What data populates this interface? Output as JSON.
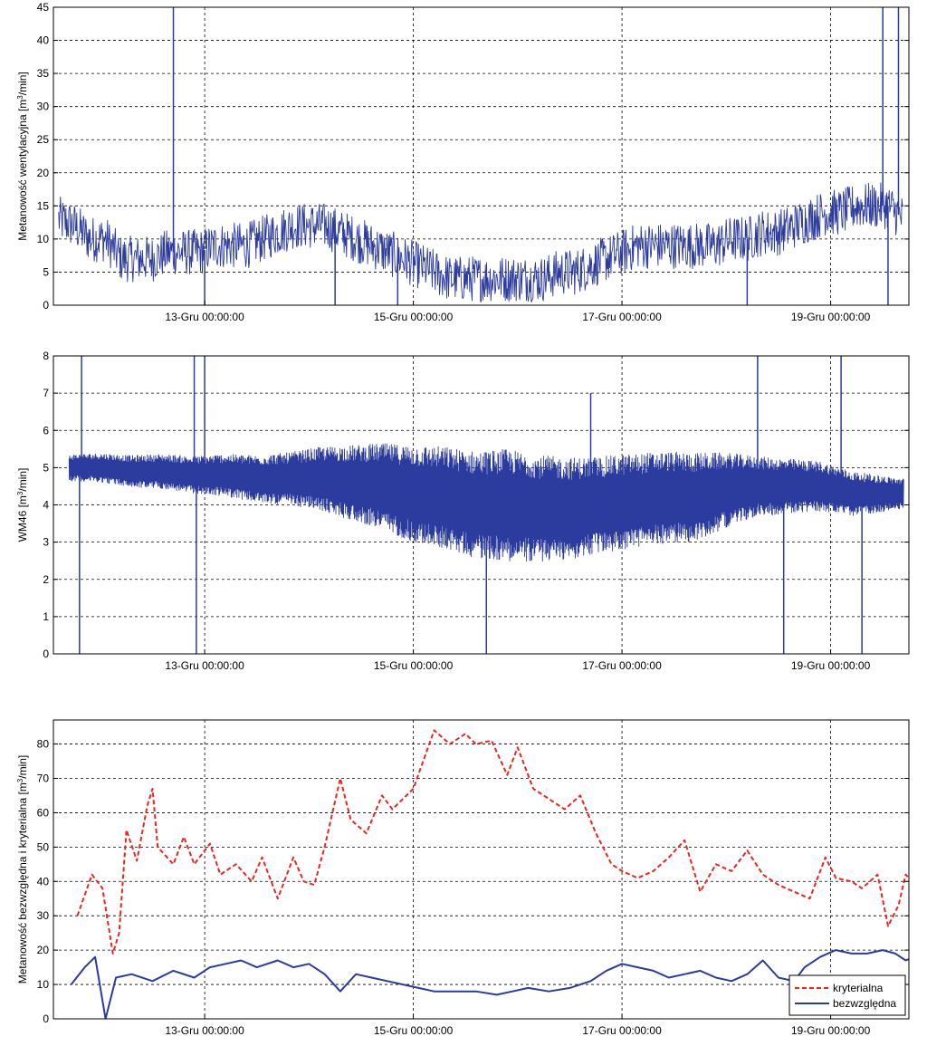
{
  "chart_data": [
    {
      "type": "line",
      "ylabel": "Metanowość wentylacyjna [m3/min]",
      "ylim": [
        0,
        45
      ],
      "yticks": [
        0,
        5,
        10,
        15,
        20,
        25,
        30,
        35,
        40,
        45
      ],
      "xlim": [
        11.55,
        19.75
      ],
      "xticks": [
        {
          "value": 13,
          "label": "13-Gru 00:00:00"
        },
        {
          "value": 15,
          "label": "15-Gru 00:00:00"
        },
        {
          "value": 17,
          "label": "17-Gru 00:00:00"
        },
        {
          "value": 19,
          "label": "19-Gru 00:00:00"
        }
      ],
      "grid": true,
      "series": [
        {
          "color": "#2b3b9e",
          "style": "solid",
          "points": [
            [
              11.6,
              13
            ],
            [
              11.75,
              12
            ],
            [
              11.9,
              10
            ],
            [
              12.05,
              10
            ],
            [
              12.2,
              7
            ],
            [
              12.35,
              7
            ],
            [
              12.5,
              7
            ],
            [
              12.65,
              8
            ],
            [
              12.8,
              8
            ],
            [
              12.95,
              8
            ],
            [
              13.1,
              9
            ],
            [
              13.25,
              9
            ],
            [
              13.4,
              9
            ],
            [
              13.55,
              10
            ],
            [
              13.7,
              11
            ],
            [
              13.85,
              12
            ],
            [
              14.0,
              12
            ],
            [
              14.15,
              12
            ],
            [
              14.3,
              11
            ],
            [
              14.45,
              10
            ],
            [
              14.6,
              9
            ],
            [
              14.75,
              8
            ],
            [
              14.9,
              7
            ],
            [
              15.05,
              6
            ],
            [
              15.2,
              5
            ],
            [
              15.35,
              4
            ],
            [
              15.5,
              4
            ],
            [
              15.65,
              4
            ],
            [
              15.8,
              4
            ],
            [
              15.95,
              4
            ],
            [
              16.1,
              4
            ],
            [
              16.25,
              4
            ],
            [
              16.4,
              5
            ],
            [
              16.55,
              5
            ],
            [
              16.7,
              6
            ],
            [
              16.85,
              7
            ],
            [
              17.0,
              8
            ],
            [
              17.15,
              9
            ],
            [
              17.3,
              9
            ],
            [
              17.45,
              9
            ],
            [
              17.6,
              9
            ],
            [
              17.75,
              9
            ],
            [
              17.9,
              9
            ],
            [
              18.05,
              10
            ],
            [
              18.2,
              10
            ],
            [
              18.35,
              11
            ],
            [
              18.5,
              11
            ],
            [
              18.65,
              12
            ],
            [
              18.8,
              13
            ],
            [
              18.95,
              14
            ],
            [
              19.1,
              14
            ],
            [
              19.25,
              15
            ],
            [
              19.4,
              15
            ],
            [
              19.55,
              15
            ],
            [
              19.7,
              13
            ]
          ],
          "noise": 3.5,
          "spikes": [
            {
              "x": 12.7,
              "y": 45
            },
            {
              "x": 13.0,
              "y": 0
            },
            {
              "x": 14.25,
              "y": 0
            },
            {
              "x": 14.85,
              "y": 0
            },
            {
              "x": 18.2,
              "y": 0
            },
            {
              "x": 19.5,
              "y": 45
            },
            {
              "x": 19.55,
              "y": 0
            },
            {
              "x": 19.65,
              "y": 45
            }
          ]
        }
      ]
    },
    {
      "type": "line",
      "ylabel": "WM46 [m3/min]",
      "ylim": [
        0,
        8
      ],
      "yticks": [
        0,
        1,
        2,
        3,
        4,
        5,
        6,
        7,
        8
      ],
      "xlim": [
        11.55,
        19.75
      ],
      "xticks": [
        {
          "value": 13,
          "label": "13-Gru 00:00:00"
        },
        {
          "value": 15,
          "label": "15-Gru 00:00:00"
        },
        {
          "value": 17,
          "label": "17-Gru 00:00:00"
        },
        {
          "value": 19,
          "label": "19-Gru 00:00:00"
        }
      ],
      "grid": true,
      "series": [
        {
          "color": "#2b3b9e",
          "style": "solid",
          "points": [
            [
              11.7,
              5.0
            ],
            [
              12.0,
              5.0
            ],
            [
              12.3,
              4.9
            ],
            [
              12.6,
              4.9
            ],
            [
              12.9,
              4.8
            ],
            [
              13.2,
              4.8
            ],
            [
              13.5,
              4.7
            ],
            [
              13.8,
              4.7
            ],
            [
              14.1,
              4.7
            ],
            [
              14.4,
              4.6
            ],
            [
              14.7,
              4.5
            ],
            [
              15.0,
              4.3
            ],
            [
              15.3,
              4.2
            ],
            [
              15.6,
              4.0
            ],
            [
              15.9,
              4.0
            ],
            [
              16.2,
              3.9
            ],
            [
              16.5,
              3.9
            ],
            [
              16.8,
              4.0
            ],
            [
              17.1,
              4.1
            ],
            [
              17.4,
              4.2
            ],
            [
              17.7,
              4.2
            ],
            [
              18.0,
              4.4
            ],
            [
              18.3,
              4.5
            ],
            [
              18.6,
              4.5
            ],
            [
              18.9,
              4.5
            ],
            [
              19.2,
              4.3
            ],
            [
              19.4,
              4.3
            ],
            [
              19.7,
              4.3
            ]
          ],
          "band_half_width": [
            [
              11.7,
              0.35
            ],
            [
              12.9,
              0.5
            ],
            [
              13.8,
              0.7
            ],
            [
              14.4,
              1.0
            ],
            [
              15.0,
              1.3
            ],
            [
              15.9,
              1.5
            ],
            [
              16.8,
              1.3
            ],
            [
              17.7,
              1.2
            ],
            [
              18.3,
              0.8
            ],
            [
              19.2,
              0.6
            ],
            [
              19.7,
              0.4
            ]
          ],
          "spikes": [
            {
              "x": 11.82,
              "y": 8
            },
            {
              "x": 11.8,
              "y": 0
            },
            {
              "x": 12.9,
              "y": 8
            },
            {
              "x": 12.92,
              "y": 0
            },
            {
              "x": 13.0,
              "y": 8
            },
            {
              "x": 15.7,
              "y": 0
            },
            {
              "x": 16.7,
              "y": 7
            },
            {
              "x": 18.3,
              "y": 8
            },
            {
              "x": 18.55,
              "y": 0
            },
            {
              "x": 19.1,
              "y": 8
            },
            {
              "x": 19.3,
              "y": 0
            }
          ]
        }
      ]
    },
    {
      "type": "line",
      "ylabel": "Metanowość bezwzględna i kryterialna [m3/min]",
      "ylim": [
        0,
        87
      ],
      "yticks": [
        0,
        10,
        20,
        30,
        40,
        50,
        60,
        70,
        80
      ],
      "xlim": [
        11.55,
        19.75
      ],
      "xticks": [
        {
          "value": 13,
          "label": "13-Gru 00:00:00"
        },
        {
          "value": 15,
          "label": "15-Gru 00:00:00"
        },
        {
          "value": 17,
          "label": "17-Gru 00:00:00"
        },
        {
          "value": 19,
          "label": "19-Gru 00:00:00"
        }
      ],
      "grid": true,
      "legend": "bottom-right",
      "series": [
        {
          "name": "kryterialna",
          "color": "#e8271f",
          "style": "dashed",
          "points": [
            [
              11.78,
              30
            ],
            [
              11.92,
              42
            ],
            [
              12.02,
              38
            ],
            [
              12.12,
              19
            ],
            [
              12.18,
              25
            ],
            [
              12.25,
              55
            ],
            [
              12.35,
              46
            ],
            [
              12.45,
              62
            ],
            [
              12.5,
              67
            ],
            [
              12.55,
              50
            ],
            [
              12.7,
              45
            ],
            [
              12.8,
              53
            ],
            [
              12.9,
              45
            ],
            [
              13.05,
              51
            ],
            [
              13.15,
              42
            ],
            [
              13.3,
              45
            ],
            [
              13.45,
              40
            ],
            [
              13.55,
              47
            ],
            [
              13.7,
              35
            ],
            [
              13.85,
              47
            ],
            [
              13.95,
              40
            ],
            [
              14.05,
              39
            ],
            [
              14.15,
              50
            ],
            [
              14.3,
              70
            ],
            [
              14.4,
              58
            ],
            [
              14.55,
              54
            ],
            [
              14.7,
              65
            ],
            [
              14.8,
              61
            ],
            [
              15.0,
              67
            ],
            [
              15.2,
              84
            ],
            [
              15.35,
              80
            ],
            [
              15.5,
              83
            ],
            [
              15.6,
              80
            ],
            [
              15.75,
              81
            ],
            [
              15.9,
              71
            ],
            [
              16.0,
              79
            ],
            [
              16.15,
              67
            ],
            [
              16.3,
              64
            ],
            [
              16.45,
              61
            ],
            [
              16.6,
              65
            ],
            [
              16.75,
              54
            ],
            [
              16.9,
              45
            ],
            [
              17.0,
              43
            ],
            [
              17.15,
              41
            ],
            [
              17.3,
              43
            ],
            [
              17.45,
              47
            ],
            [
              17.6,
              52
            ],
            [
              17.75,
              37
            ],
            [
              17.9,
              45
            ],
            [
              18.05,
              43
            ],
            [
              18.2,
              49
            ],
            [
              18.35,
              42
            ],
            [
              18.5,
              39
            ],
            [
              18.65,
              37
            ],
            [
              18.8,
              35
            ],
            [
              18.95,
              47
            ],
            [
              19.05,
              41
            ],
            [
              19.2,
              40
            ],
            [
              19.3,
              38
            ],
            [
              19.45,
              42
            ],
            [
              19.55,
              27
            ],
            [
              19.65,
              33
            ],
            [
              19.72,
              42
            ],
            [
              19.78,
              40
            ]
          ]
        },
        {
          "name": "bezwzględna",
          "color": "#2b3b9e",
          "style": "solid",
          "points": [
            [
              11.72,
              10
            ],
            [
              11.85,
              15
            ],
            [
              11.95,
              18
            ],
            [
              12.05,
              0
            ],
            [
              12.15,
              12
            ],
            [
              12.3,
              13
            ],
            [
              12.5,
              11
            ],
            [
              12.7,
              14
            ],
            [
              12.9,
              12
            ],
            [
              13.05,
              15
            ],
            [
              13.2,
              16
            ],
            [
              13.35,
              17
            ],
            [
              13.5,
              15
            ],
            [
              13.7,
              17
            ],
            [
              13.85,
              15
            ],
            [
              14.0,
              16
            ],
            [
              14.15,
              13
            ],
            [
              14.3,
              8
            ],
            [
              14.45,
              13
            ],
            [
              14.6,
              12
            ],
            [
              14.75,
              11
            ],
            [
              14.9,
              10
            ],
            [
              15.05,
              9
            ],
            [
              15.2,
              8
            ],
            [
              15.4,
              8
            ],
            [
              15.6,
              8
            ],
            [
              15.8,
              7
            ],
            [
              15.95,
              8
            ],
            [
              16.1,
              9
            ],
            [
              16.3,
              8
            ],
            [
              16.5,
              9
            ],
            [
              16.7,
              11
            ],
            [
              16.85,
              14
            ],
            [
              17.0,
              16
            ],
            [
              17.15,
              15
            ],
            [
              17.3,
              14
            ],
            [
              17.45,
              12
            ],
            [
              17.6,
              13
            ],
            [
              17.75,
              14
            ],
            [
              17.9,
              12
            ],
            [
              18.05,
              11
            ],
            [
              18.2,
              13
            ],
            [
              18.35,
              17
            ],
            [
              18.5,
              12
            ],
            [
              18.65,
              11
            ],
            [
              18.75,
              15
            ],
            [
              18.9,
              18
            ],
            [
              19.05,
              20
            ],
            [
              19.2,
              19
            ],
            [
              19.35,
              19
            ],
            [
              19.5,
              20
            ],
            [
              19.62,
              19
            ],
            [
              19.72,
              17
            ],
            [
              19.8,
              18
            ]
          ]
        }
      ]
    }
  ]
}
